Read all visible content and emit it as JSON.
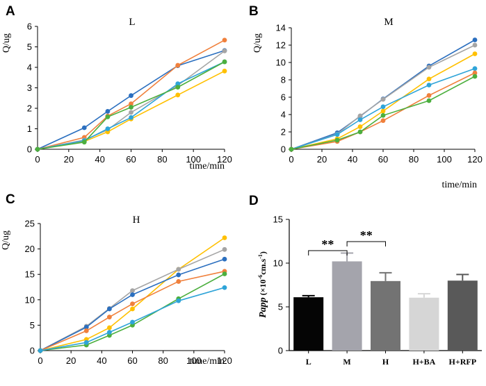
{
  "chart_data": [
    {
      "id": "A",
      "type": "line",
      "panel_letter": "A",
      "title": "L",
      "ylabel": "Q/ug",
      "xlabel": "time/min",
      "x": [
        0,
        30,
        45,
        60,
        90,
        120
      ],
      "xticks": [
        0,
        20,
        40,
        60,
        80,
        100,
        120
      ],
      "yticks": [
        0,
        1,
        2,
        3,
        4,
        5,
        6
      ],
      "xlim": [
        0,
        120
      ],
      "ylim": [
        0,
        6
      ],
      "series": [
        {
          "name": "s1",
          "color": "#2b6fbf",
          "values": [
            0,
            1.05,
            1.85,
            2.62,
            4.08,
            4.82
          ]
        },
        {
          "name": "s2",
          "color": "#f0803c",
          "values": [
            0,
            0.58,
            1.62,
            2.22,
            4.1,
            5.33
          ]
        },
        {
          "name": "s3",
          "color": "#a5a5a5",
          "values": [
            0,
            0.45,
            0.95,
            1.8,
            3.12,
            4.8
          ]
        },
        {
          "name": "s4",
          "color": "#ffc000",
          "values": [
            0,
            0.38,
            0.85,
            1.48,
            2.65,
            3.82
          ]
        },
        {
          "name": "s5",
          "color": "#2fa4d8",
          "values": [
            0,
            0.42,
            1.0,
            1.55,
            3.2,
            4.27
          ]
        },
        {
          "name": "s6",
          "color": "#4caf3e",
          "values": [
            0,
            0.35,
            1.58,
            2.05,
            3.03,
            4.27
          ]
        }
      ]
    },
    {
      "id": "B",
      "type": "line",
      "panel_letter": "B",
      "title": "M",
      "ylabel": "Q/ug",
      "xlabel": "time/min",
      "x": [
        0,
        30,
        45,
        60,
        90,
        120
      ],
      "xticks": [
        0,
        20,
        40,
        60,
        80,
        100,
        120
      ],
      "yticks": [
        0,
        2,
        4,
        6,
        8,
        10,
        12,
        14
      ],
      "xlim": [
        0,
        120
      ],
      "ylim": [
        0,
        14
      ],
      "series": [
        {
          "name": "s1",
          "color": "#2b6fbf",
          "values": [
            0,
            1.9,
            3.8,
            5.8,
            9.6,
            12.6
          ]
        },
        {
          "name": "s2",
          "color": "#a5a5a5",
          "values": [
            0,
            1.75,
            3.85,
            5.75,
            9.45,
            12.0
          ]
        },
        {
          "name": "s3",
          "color": "#ffc000",
          "values": [
            0,
            1.2,
            2.6,
            4.4,
            8.1,
            11.0
          ]
        },
        {
          "name": "s4",
          "color": "#2fa4d8",
          "values": [
            0,
            1.7,
            3.4,
            4.9,
            7.4,
            9.3
          ]
        },
        {
          "name": "s5",
          "color": "#f0803c",
          "values": [
            0,
            0.9,
            2.0,
            3.3,
            6.2,
            8.8
          ]
        },
        {
          "name": "s6",
          "color": "#4caf3e",
          "values": [
            0,
            1.05,
            2.0,
            3.9,
            5.6,
            8.4
          ]
        }
      ]
    },
    {
      "id": "C",
      "type": "line",
      "panel_letter": "C",
      "title": "H",
      "ylabel": "Q/ug",
      "xlabel": "time/min",
      "x": [
        0,
        30,
        45,
        60,
        90,
        120
      ],
      "xticks": [
        0,
        20,
        40,
        60,
        80,
        100,
        120
      ],
      "yticks": [
        0,
        5,
        10,
        15,
        20,
        25
      ],
      "xlim": [
        0,
        120
      ],
      "ylim": [
        0,
        25
      ],
      "series": [
        {
          "name": "s1",
          "color": "#ffc000",
          "values": [
            0,
            2.2,
            4.5,
            8.2,
            16.0,
            22.2
          ]
        },
        {
          "name": "s2",
          "color": "#a5a5a5",
          "values": [
            0,
            4.8,
            8.3,
            11.8,
            16.0,
            19.9
          ]
        },
        {
          "name": "s3",
          "color": "#2b6fbf",
          "values": [
            0,
            4.6,
            8.2,
            11.0,
            14.9,
            18.0
          ]
        },
        {
          "name": "s4",
          "color": "#f0803c",
          "values": [
            0,
            3.9,
            6.6,
            9.2,
            13.6,
            15.6
          ]
        },
        {
          "name": "s5",
          "color": "#4caf3e",
          "values": [
            0,
            1.1,
            3.0,
            5.0,
            10.2,
            15.1
          ]
        },
        {
          "name": "s6",
          "color": "#2fa4d8",
          "values": [
            0,
            1.6,
            3.6,
            5.6,
            9.8,
            12.4
          ]
        }
      ]
    },
    {
      "id": "D",
      "type": "bar",
      "panel_letter": "D",
      "ylabel_main": "Papp",
      "ylabel_unit": "(×10",
      "ylabel_exp": "-6",
      "ylabel_tail": "cm.s",
      "ylabel_exp2": "-1",
      "ylabel_close": ")",
      "categories": [
        "L",
        "M",
        "H",
        "H+BA",
        "H+RFP"
      ],
      "values": [
        6.1,
        10.2,
        7.95,
        6.05,
        8.0
      ],
      "errors": [
        0.18,
        0.95,
        0.95,
        0.45,
        0.7
      ],
      "colors": [
        "#050505",
        "#a4a4ac",
        "#737373",
        "#d6d6d6",
        "#595959"
      ],
      "yticks": [
        0,
        5,
        10,
        15
      ],
      "ylim": [
        0,
        15
      ],
      "significance": [
        {
          "from": 0,
          "to": 1,
          "label": "**"
        },
        {
          "from": 1,
          "to": 2,
          "label": "**"
        }
      ]
    }
  ]
}
